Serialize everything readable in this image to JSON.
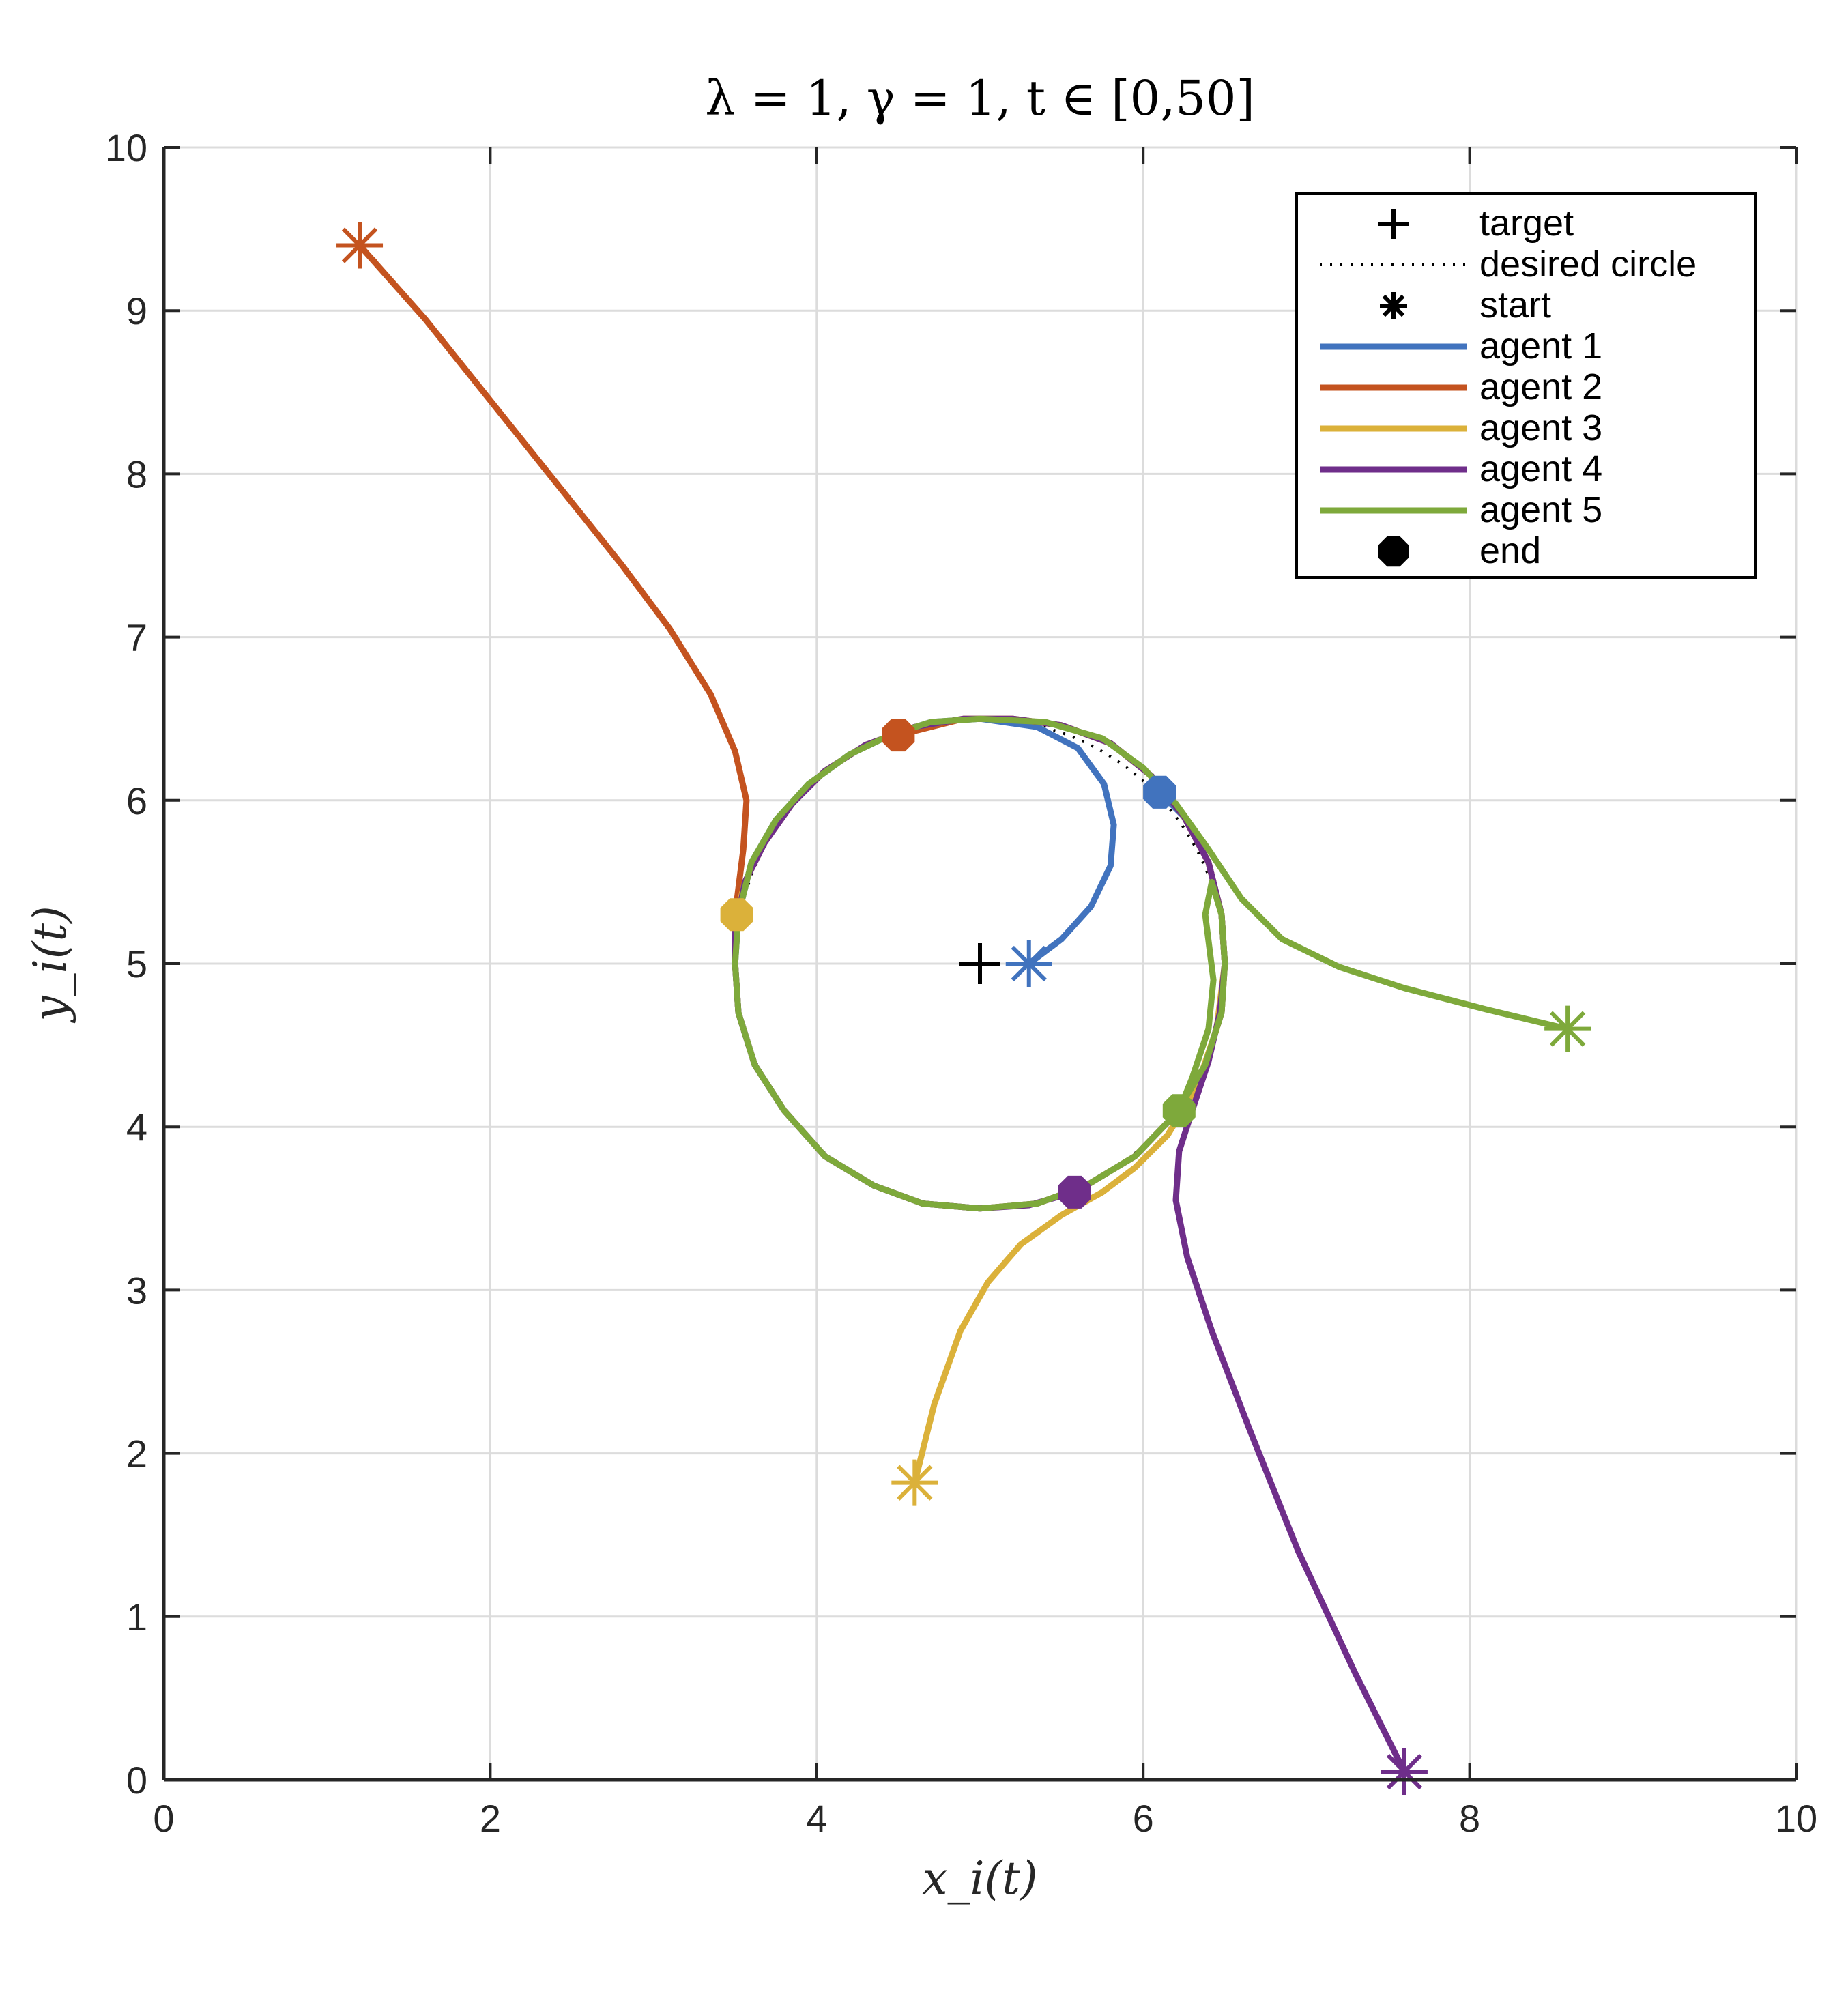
{
  "chart_data": {
    "type": "line",
    "title": "λ = 1,   γ = 1,   t ∈ [0,50]",
    "xlabel": "x_i(t)",
    "ylabel": "y_i(t)",
    "xlim": [
      0,
      10
    ],
    "ylim": [
      0,
      10
    ],
    "xticks": [
      "0",
      "2",
      "4",
      "6",
      "8",
      "10"
    ],
    "yticks": [
      "0",
      "1",
      "2",
      "3",
      "4",
      "5",
      "6",
      "7",
      "8",
      "9",
      "10"
    ],
    "grid": true,
    "legend_position": "top-right",
    "target": {
      "label": "target",
      "x": 5.0,
      "y": 5.0
    },
    "desired_circle": {
      "label": "desired circle",
      "center": [
        5.0,
        5.0
      ],
      "radius": 1.5
    },
    "start_label": "start",
    "end_label": "end",
    "series": [
      {
        "name": "agent 1",
        "color": "#4173BE",
        "points": [
          [
            5.3,
            5.0
          ],
          [
            5.5,
            5.15
          ],
          [
            5.68,
            5.35
          ],
          [
            5.8,
            5.6
          ],
          [
            5.82,
            5.85
          ],
          [
            5.76,
            6.1
          ],
          [
            5.6,
            6.32
          ],
          [
            5.35,
            6.45
          ],
          [
            5.0,
            6.5
          ],
          [
            4.7,
            6.48
          ],
          [
            4.45,
            6.4
          ],
          [
            4.2,
            6.28
          ],
          [
            3.95,
            6.1
          ],
          [
            3.75,
            5.88
          ],
          [
            3.6,
            5.62
          ],
          [
            3.52,
            5.3
          ],
          [
            3.5,
            5.0
          ],
          [
            3.52,
            4.7
          ],
          [
            3.62,
            4.38
          ],
          [
            3.8,
            4.1
          ],
          [
            4.05,
            3.82
          ],
          [
            4.35,
            3.64
          ],
          [
            4.65,
            3.53
          ],
          [
            5.0,
            3.5
          ],
          [
            5.35,
            3.53
          ],
          [
            5.65,
            3.64
          ],
          [
            5.95,
            3.82
          ],
          [
            6.2,
            4.08
          ],
          [
            6.38,
            4.38
          ],
          [
            6.48,
            4.7
          ],
          [
            6.5,
            5.0
          ],
          [
            6.48,
            5.3
          ],
          [
            6.4,
            5.62
          ],
          [
            6.25,
            5.9
          ],
          [
            6.1,
            6.05
          ]
        ],
        "start": [
          5.3,
          5.0
        ],
        "end": [
          6.1,
          6.05
        ]
      },
      {
        "name": "agent 2",
        "color": "#C4531F",
        "points": [
          [
            1.2,
            9.4
          ],
          [
            1.6,
            8.95
          ],
          [
            2.0,
            8.45
          ],
          [
            2.4,
            7.95
          ],
          [
            2.8,
            7.45
          ],
          [
            3.1,
            7.05
          ],
          [
            3.35,
            6.65
          ],
          [
            3.5,
            6.3
          ],
          [
            3.57,
            6.0
          ],
          [
            3.55,
            5.7
          ],
          [
            3.5,
            5.3
          ],
          [
            3.5,
            5.0
          ],
          [
            3.52,
            4.7
          ],
          [
            3.62,
            4.38
          ],
          [
            3.8,
            4.1
          ],
          [
            4.05,
            3.82
          ],
          [
            4.35,
            3.64
          ],
          [
            4.65,
            3.53
          ],
          [
            5.0,
            3.5
          ],
          [
            5.35,
            3.53
          ],
          [
            5.65,
            3.64
          ],
          [
            5.95,
            3.82
          ],
          [
            6.2,
            4.08
          ],
          [
            6.38,
            4.38
          ],
          [
            6.48,
            4.7
          ],
          [
            6.5,
            5.0
          ],
          [
            6.48,
            5.3
          ],
          [
            6.4,
            5.62
          ],
          [
            6.25,
            5.9
          ],
          [
            6.05,
            6.15
          ],
          [
            5.8,
            6.35
          ],
          [
            5.5,
            6.46
          ],
          [
            5.2,
            6.5
          ],
          [
            4.9,
            6.5
          ],
          [
            4.5,
            6.4
          ]
        ],
        "start": [
          1.2,
          9.4
        ],
        "end": [
          4.5,
          6.4
        ]
      },
      {
        "name": "agent 3",
        "color": "#DBB13A",
        "points": [
          [
            4.6,
            1.82
          ],
          [
            4.72,
            2.3
          ],
          [
            4.88,
            2.75
          ],
          [
            5.05,
            3.05
          ],
          [
            5.25,
            3.28
          ],
          [
            5.5,
            3.46
          ],
          [
            5.75,
            3.6
          ],
          [
            5.95,
            3.75
          ],
          [
            6.15,
            3.95
          ],
          [
            6.33,
            4.25
          ],
          [
            6.45,
            4.6
          ],
          [
            6.5,
            5.0
          ],
          [
            6.48,
            5.3
          ],
          [
            6.4,
            5.62
          ],
          [
            6.25,
            5.9
          ],
          [
            6.05,
            6.15
          ],
          [
            5.8,
            6.35
          ],
          [
            5.5,
            6.46
          ],
          [
            5.2,
            6.5
          ],
          [
            4.9,
            6.5
          ],
          [
            4.6,
            6.45
          ],
          [
            4.3,
            6.34
          ],
          [
            4.05,
            6.18
          ],
          [
            3.85,
            5.98
          ],
          [
            3.68,
            5.74
          ],
          [
            3.56,
            5.5
          ],
          [
            3.51,
            5.3
          ]
        ],
        "start": [
          4.6,
          1.82
        ],
        "end": [
          3.51,
          5.3
        ]
      },
      {
        "name": "agent 4",
        "color": "#6F2E8A",
        "points": [
          [
            7.6,
            0.05
          ],
          [
            7.3,
            0.65
          ],
          [
            6.95,
            1.4
          ],
          [
            6.65,
            2.15
          ],
          [
            6.42,
            2.75
          ],
          [
            6.27,
            3.2
          ],
          [
            6.2,
            3.55
          ],
          [
            6.22,
            3.85
          ],
          [
            6.3,
            4.1
          ],
          [
            6.4,
            4.4
          ],
          [
            6.47,
            4.7
          ],
          [
            6.5,
            5.0
          ],
          [
            6.48,
            5.3
          ],
          [
            6.4,
            5.62
          ],
          [
            6.25,
            5.9
          ],
          [
            6.05,
            6.15
          ],
          [
            5.8,
            6.35
          ],
          [
            5.5,
            6.46
          ],
          [
            5.2,
            6.5
          ],
          [
            4.9,
            6.5
          ],
          [
            4.6,
            6.45
          ],
          [
            4.3,
            6.34
          ],
          [
            4.05,
            6.18
          ],
          [
            3.85,
            5.98
          ],
          [
            3.68,
            5.74
          ],
          [
            3.56,
            5.5
          ],
          [
            3.5,
            5.2
          ],
          [
            3.5,
            5.0
          ],
          [
            3.52,
            4.7
          ],
          [
            3.62,
            4.38
          ],
          [
            3.8,
            4.1
          ],
          [
            4.05,
            3.82
          ],
          [
            4.35,
            3.64
          ],
          [
            4.65,
            3.53
          ],
          [
            5.0,
            3.5
          ],
          [
            5.3,
            3.52
          ],
          [
            5.58,
            3.6
          ]
        ],
        "start": [
          7.6,
          0.05
        ],
        "end": [
          5.58,
          3.6
        ]
      },
      {
        "name": "agent 5",
        "color": "#7EA93B",
        "points": [
          [
            8.6,
            4.6
          ],
          [
            8.1,
            4.72
          ],
          [
            7.6,
            4.85
          ],
          [
            7.2,
            4.98
          ],
          [
            6.85,
            5.15
          ],
          [
            6.6,
            5.4
          ],
          [
            6.4,
            5.7
          ],
          [
            6.2,
            5.98
          ],
          [
            6.0,
            6.2
          ],
          [
            5.75,
            6.38
          ],
          [
            5.4,
            6.48
          ],
          [
            5.0,
            6.5
          ],
          [
            4.7,
            6.48
          ],
          [
            4.45,
            6.4
          ],
          [
            4.2,
            6.28
          ],
          [
            3.95,
            6.1
          ],
          [
            3.75,
            5.88
          ],
          [
            3.6,
            5.62
          ],
          [
            3.52,
            5.3
          ],
          [
            3.5,
            5.0
          ],
          [
            3.52,
            4.7
          ],
          [
            3.62,
            4.38
          ],
          [
            3.8,
            4.1
          ],
          [
            4.05,
            3.82
          ],
          [
            4.35,
            3.64
          ],
          [
            4.65,
            3.53
          ],
          [
            5.0,
            3.5
          ],
          [
            5.35,
            3.53
          ],
          [
            5.65,
            3.64
          ],
          [
            5.95,
            3.82
          ],
          [
            6.2,
            4.08
          ],
          [
            6.38,
            4.38
          ],
          [
            6.48,
            4.7
          ],
          [
            6.5,
            5.0
          ],
          [
            6.48,
            5.3
          ],
          [
            6.42,
            5.5
          ],
          [
            6.38,
            5.3
          ],
          [
            6.43,
            4.9
          ],
          [
            6.4,
            4.6
          ],
          [
            6.3,
            4.3
          ],
          [
            6.22,
            4.1
          ]
        ],
        "start": [
          8.6,
          4.6
        ],
        "end": [
          6.22,
          4.1
        ]
      }
    ]
  }
}
